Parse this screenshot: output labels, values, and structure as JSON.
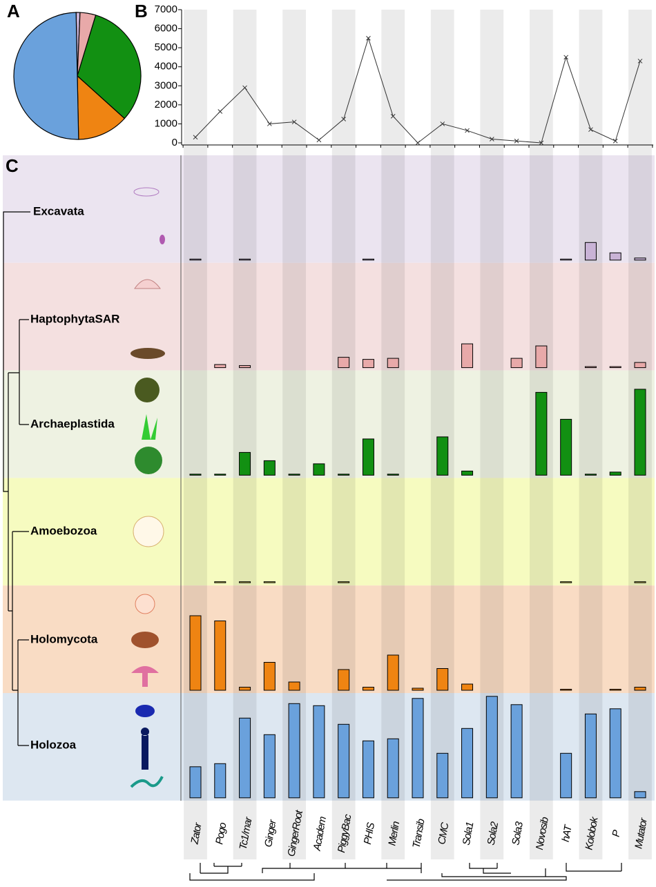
{
  "chart_data": [
    {
      "type": "pie",
      "title": "A",
      "values": [
        1,
        4,
        32,
        13,
        50
      ],
      "colors": [
        "#c9b3d6",
        "#e8a9a9",
        "#129012",
        "#ef8412",
        "#6aa1dc"
      ]
    },
    {
      "type": "line",
      "title": "B",
      "values": [
        300,
        1650,
        2900,
        1000,
        1100,
        150,
        1250,
        5500,
        1400,
        0,
        1000,
        650,
        200,
        100,
        0,
        4500,
        700,
        100,
        4300
      ],
      "ylim": [
        0,
        7000
      ],
      "yticks": [
        0,
        1000,
        2000,
        3000,
        4000,
        5000,
        6000,
        7000
      ],
      "color": "#333333"
    },
    {
      "type": "bar",
      "title": "C",
      "categories": [
        "Zator",
        "Pogo",
        "Tc1/mar",
        "Ginger",
        "GingerRoot",
        "Academ",
        "PiggyBac",
        "PHIS",
        "Merlin",
        "Transib",
        "CMC",
        "Sola1",
        "Sola2",
        "Sola3",
        "Novosib",
        "hAT",
        "Kolobok",
        "P",
        "Mutator"
      ],
      "ylim": [
        0,
        1
      ],
      "series": [
        {
          "name": "Excavata",
          "color": "#c9b3d6",
          "background": "#ebe4f0",
          "values": [
            0.01,
            0,
            0.01,
            0,
            0,
            0,
            0,
            0.01,
            0,
            0,
            0,
            0,
            0,
            0,
            0,
            0.01,
            0.17,
            0.07,
            0.02
          ]
        },
        {
          "name": "HaptophytaSAR",
          "color": "#e8a9a9",
          "background": "#f4e0e0",
          "values": [
            0,
            0.03,
            0.02,
            0,
            0,
            0,
            0.1,
            0.08,
            0.09,
            0,
            0,
            0.23,
            0,
            0.09,
            0.21,
            0,
            0.01,
            0.01,
            0.05
          ]
        },
        {
          "name": "Archaeplastida",
          "color": "#129012",
          "background": "#eef2e2",
          "values": [
            0.01,
            0.01,
            0.22,
            0.14,
            0.01,
            0.11,
            0.01,
            0.35,
            0.01,
            0,
            0.37,
            0.04,
            0,
            0,
            0.8,
            0.54,
            0.01,
            0.03,
            0.83
          ]
        },
        {
          "name": "Amoebozoa",
          "color": "#e8e060",
          "background": "#f6fbc0",
          "values": [
            0,
            0.01,
            0.01,
            0.01,
            0,
            0,
            0.01,
            0,
            0,
            0,
            0,
            0,
            0,
            0,
            0,
            0.01,
            0,
            0,
            0.01
          ]
        },
        {
          "name": "Holomycota",
          "color": "#ef8412",
          "background": "#f9dcc4",
          "values": [
            0.72,
            0.67,
            0.03,
            0.27,
            0.08,
            0,
            0.2,
            0.03,
            0.34,
            0.02,
            0.21,
            0.06,
            0,
            0,
            0,
            0.01,
            0,
            0.01,
            0.03
          ]
        },
        {
          "name": "Holozoa",
          "color": "#6aa1dc",
          "background": "#dde7f1",
          "values": [
            0.3,
            0.33,
            0.77,
            0.61,
            0.91,
            0.89,
            0.71,
            0.55,
            0.57,
            0.96,
            0.43,
            0.67,
            0.98,
            0.9,
            0,
            0.43,
            0.81,
            0.86,
            0.06
          ]
        }
      ]
    }
  ]
}
